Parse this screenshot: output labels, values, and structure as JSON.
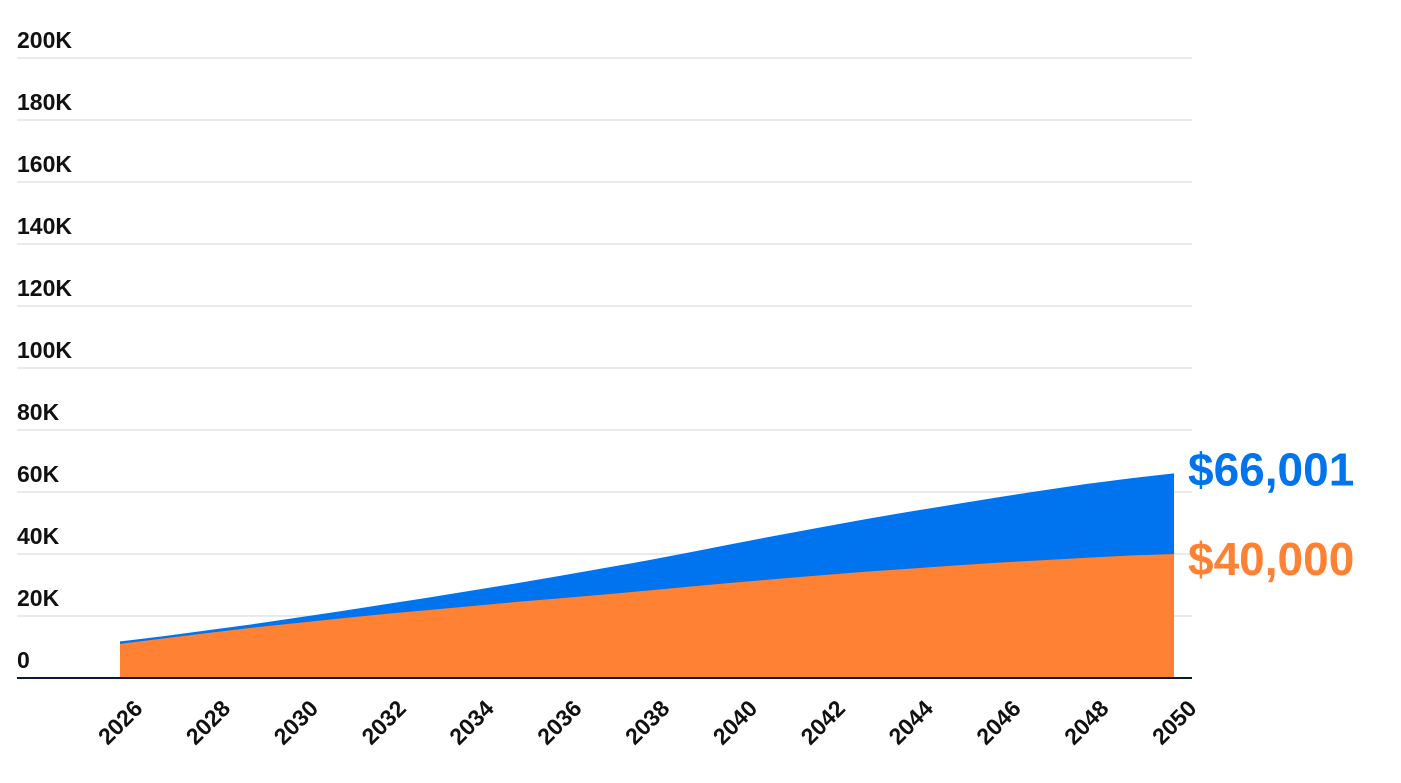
{
  "chart_data": {
    "type": "area",
    "x": [
      2026,
      2027,
      2028,
      2029,
      2030,
      2031,
      2032,
      2033,
      2034,
      2035,
      2036,
      2037,
      2038,
      2039,
      2040,
      2041,
      2042,
      2043,
      2044,
      2045,
      2046,
      2047,
      2048,
      2049,
      2050
    ],
    "xticks": [
      "2026",
      "2028",
      "2030",
      "2032",
      "2034",
      "2036",
      "2038",
      "2040",
      "2042",
      "2044",
      "2046",
      "2048",
      "2050"
    ],
    "yticks": [
      "0",
      "20K",
      "40K",
      "60K",
      "80K",
      "100K",
      "120K",
      "140K",
      "160K",
      "180K",
      "200K"
    ],
    "ylim": [
      0,
      200000
    ],
    "grid": true,
    "legend": "none",
    "series": [
      {
        "key": "blue",
        "color": "#0073ee",
        "values": [
          11800,
          13500,
          15400,
          17300,
          19400,
          21500,
          23700,
          25900,
          28200,
          30500,
          32900,
          35400,
          37900,
          40600,
          43400,
          46100,
          48700,
          51300,
          53700,
          56000,
          58300,
          60500,
          62600,
          64400,
          66001
        ],
        "end_label": "$66,001"
      },
      {
        "key": "orange",
        "color": "#ff8133",
        "values": [
          11000,
          12800,
          14500,
          16200,
          17700,
          19200,
          20600,
          21900,
          23200,
          24500,
          25700,
          26900,
          28200,
          29500,
          30800,
          32000,
          33200,
          34300,
          35300,
          36300,
          37200,
          38000,
          38800,
          39500,
          40000
        ],
        "end_label": "$40,000"
      }
    ],
    "gridline_color": "#e4e4e4",
    "axis_color": "#0a1a3a"
  }
}
